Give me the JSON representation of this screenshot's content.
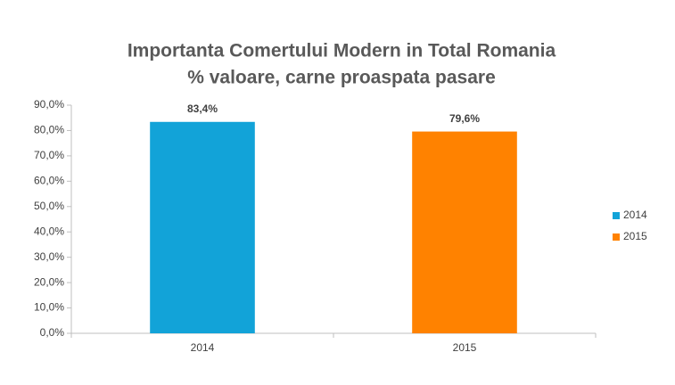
{
  "chart_data": {
    "type": "bar",
    "title": "Importanta Comertului Modern in Total Romania",
    "subtitle": "% valoare, carne proaspata pasare",
    "categories": [
      "2014",
      "2015"
    ],
    "series": [
      {
        "name": "2014",
        "color": "#12a3d8",
        "values": [
          83.4,
          null
        ],
        "value_labels": [
          "83,4%",
          null
        ]
      },
      {
        "name": "2015",
        "color": "#ff8200",
        "values": [
          null,
          79.6
        ],
        "value_labels": [
          null,
          "79,6%"
        ]
      }
    ],
    "ylim": [
      0,
      90
    ],
    "yticks": [
      {
        "value": 0,
        "label": "0,0%"
      },
      {
        "value": 10,
        "label": "10,0%"
      },
      {
        "value": 20,
        "label": "20,0%"
      },
      {
        "value": 30,
        "label": "30,0%"
      },
      {
        "value": 40,
        "label": "40,0%"
      },
      {
        "value": 50,
        "label": "50,0%"
      },
      {
        "value": 60,
        "label": "60,0%"
      },
      {
        "value": 70,
        "label": "70,0%"
      },
      {
        "value": 80,
        "label": "80,0%"
      },
      {
        "value": 90,
        "label": "90,0%"
      }
    ],
    "legend": "right"
  }
}
